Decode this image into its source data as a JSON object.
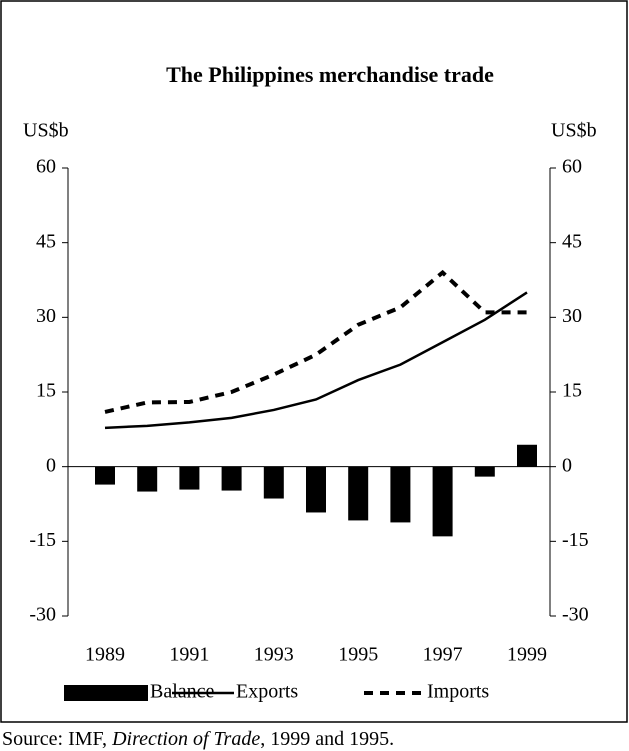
{
  "chart_data": {
    "type": "bar-line",
    "title": "The Philippines merchandise trade",
    "y_label": "US$b",
    "y2_label": "US$b",
    "categories": [
      "1989",
      null,
      "1991",
      null,
      "1993",
      null,
      "1995",
      null,
      "1997",
      null,
      "1999"
    ],
    "ylim": [
      -30,
      60
    ],
    "yticks": [
      -30,
      -15,
      0,
      15,
      30,
      45,
      60
    ],
    "y2lim": [
      -30,
      60
    ],
    "y2ticks": [
      -30,
      -15,
      0,
      15,
      30,
      45,
      60
    ],
    "series": [
      {
        "name": "Balance",
        "kind": "bar",
        "color": "#000000",
        "values": [
          -3.6,
          -5,
          -4.6,
          -4.8,
          -6.4,
          -9.2,
          -10.8,
          -11.2,
          -14,
          -2,
          4.4
        ]
      },
      {
        "name": "Exports",
        "kind": "line",
        "color": "#000000",
        "values": [
          7.8,
          8.2,
          8.9,
          9.8,
          11.4,
          13.5,
          17.4,
          20.5,
          25,
          29.5,
          35
        ]
      },
      {
        "name": "Imports",
        "kind": "dashed",
        "color": "#000000",
        "values": [
          11,
          12.9,
          13,
          15,
          18.5,
          22.5,
          28.5,
          32,
          39,
          31,
          31
        ]
      }
    ],
    "source": {
      "prefix": "Source:  IMF, ",
      "italic": "Direction of Trade",
      "suffix": ", 1999 and 1995."
    }
  }
}
